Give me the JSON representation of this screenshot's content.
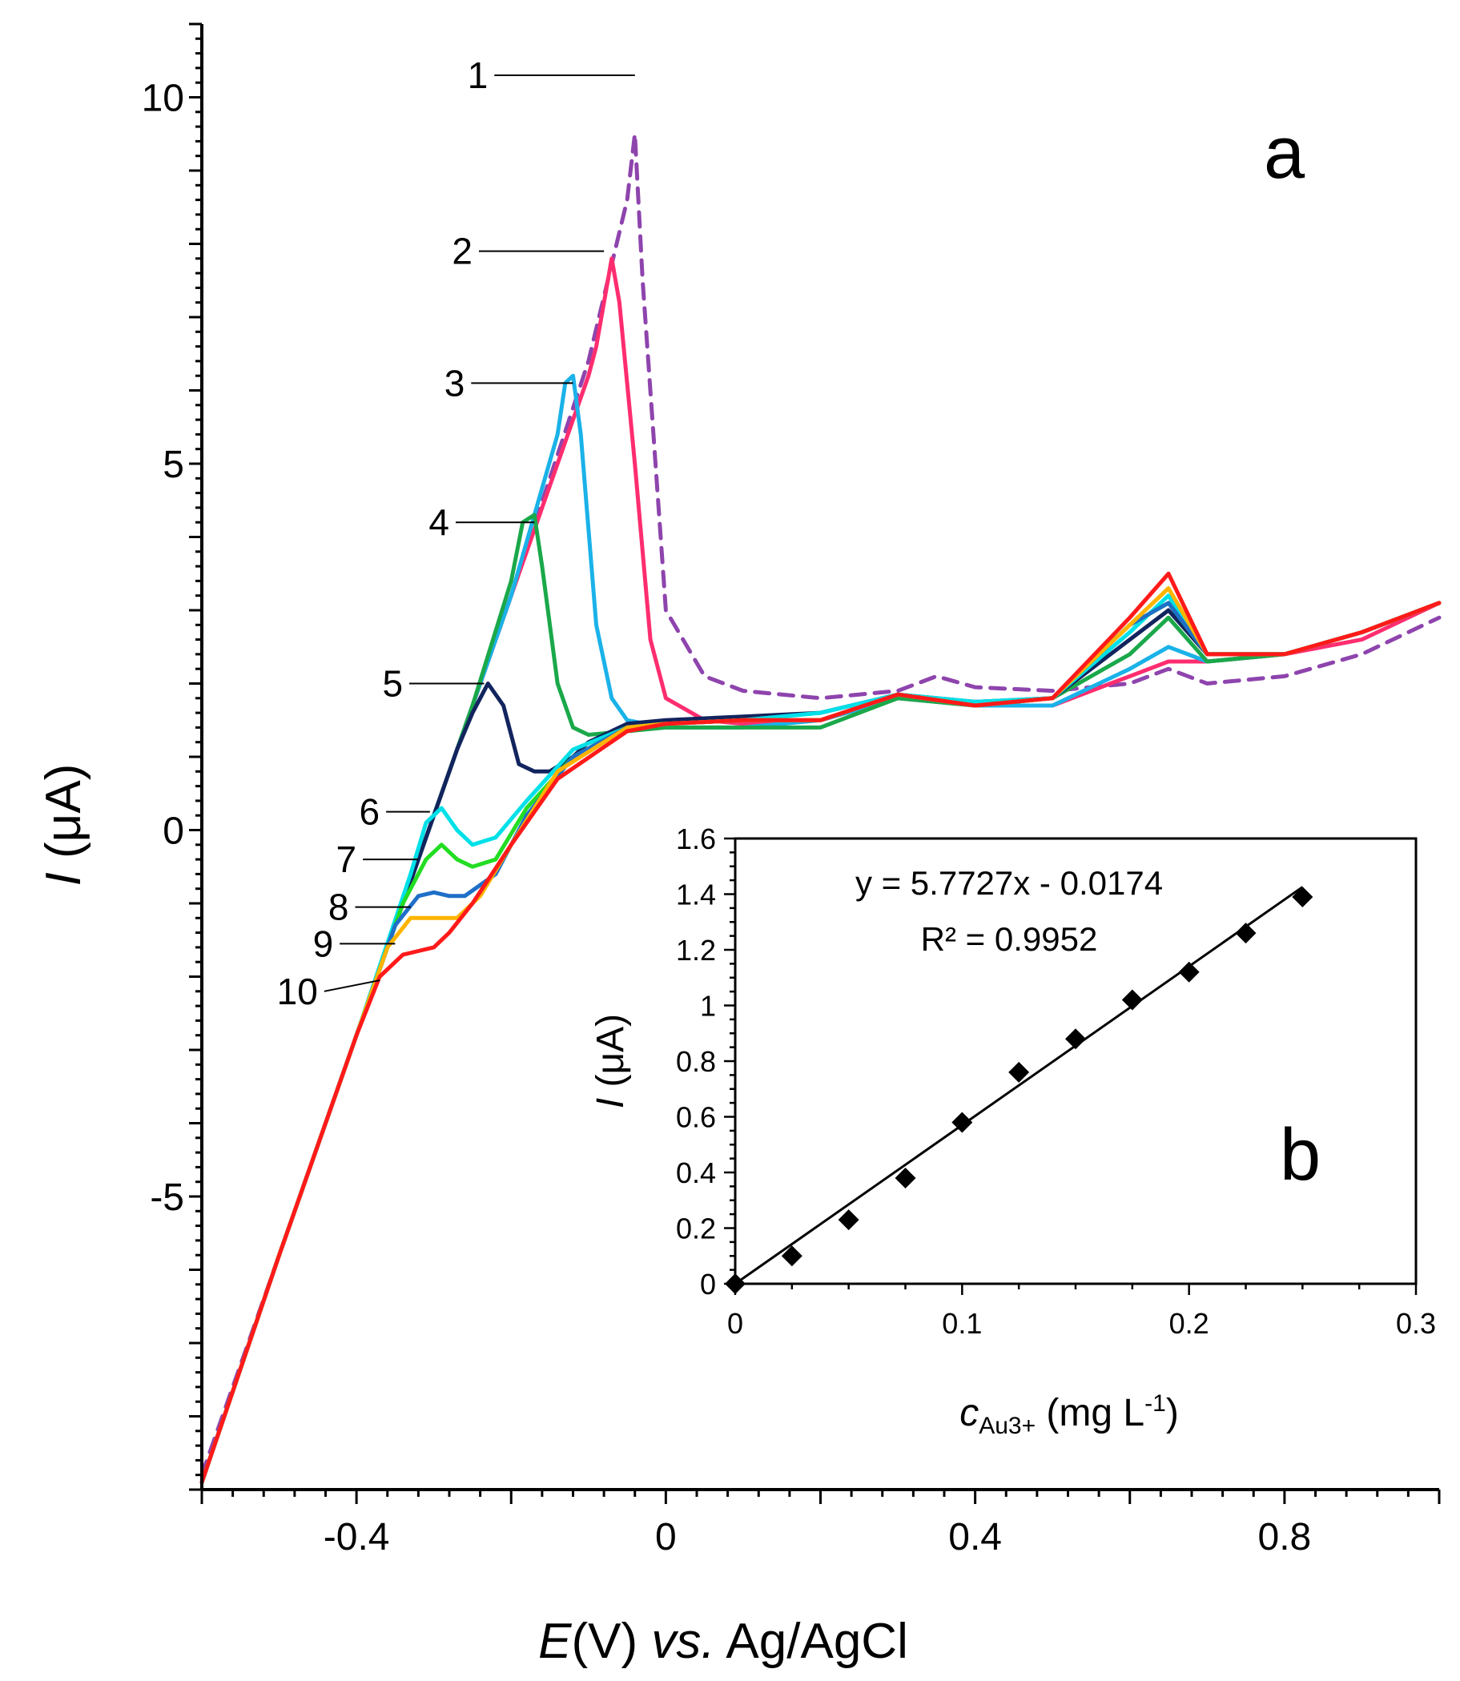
{
  "chart_data": [
    {
      "type": "line",
      "panel_label": "a",
      "xlabel": {
        "italic": "E",
        "rest1": "(V) ",
        "italic2": "vs.",
        "rest2": " Ag/AgCl"
      },
      "ylabel": {
        "italic": "I",
        "rest": " (μA)"
      },
      "xlim": [
        -0.6,
        1.0
      ],
      "ylim": [
        -9,
        11
      ],
      "x_ticks": [
        {
          "value": -0.4,
          "label": "-0.4"
        },
        {
          "value": 0,
          "label": "0"
        },
        {
          "value": 0.4,
          "label": "0.4"
        },
        {
          "value": 0.8,
          "label": "0.8"
        }
      ],
      "y_ticks": [
        {
          "value": 10,
          "label": "10"
        },
        {
          "value": 5,
          "label": "5"
        },
        {
          "value": 0,
          "label": "0"
        },
        {
          "value": -5,
          "label": "-5"
        }
      ],
      "series": [
        {
          "name": "1",
          "color": "#8e44ad",
          "dashed": true,
          "x": [
            -0.6,
            -0.5,
            -0.4,
            -0.3,
            -0.2,
            -0.1,
            -0.05,
            -0.04,
            -0.03,
            -0.01,
            0.0,
            0.05,
            0.1,
            0.2,
            0.3,
            0.35,
            0.4,
            0.5,
            0.6,
            0.65,
            0.7,
            0.8,
            0.9,
            1.0
          ],
          "y": [
            -8.8,
            -5.8,
            -2.8,
            0.2,
            3.2,
            6.4,
            8.6,
            9.5,
            7.5,
            4.5,
            3.0,
            2.1,
            1.9,
            1.8,
            1.9,
            2.1,
            1.95,
            1.9,
            2.0,
            2.2,
            2.0,
            2.1,
            2.4,
            2.9
          ]
        },
        {
          "name": "2",
          "color": "#ff2d6f",
          "dashed": false,
          "x": [
            -0.6,
            -0.5,
            -0.4,
            -0.3,
            -0.2,
            -0.1,
            -0.09,
            -0.07,
            -0.06,
            -0.04,
            -0.02,
            0.0,
            0.05,
            0.1,
            0.2,
            0.3,
            0.4,
            0.5,
            0.6,
            0.65,
            0.7,
            0.8,
            0.9,
            1.0
          ],
          "y": [
            -8.9,
            -5.8,
            -2.8,
            0.2,
            3.2,
            6.2,
            6.6,
            7.8,
            7.2,
            5.0,
            2.6,
            1.8,
            1.5,
            1.45,
            1.5,
            1.8,
            1.7,
            1.7,
            2.1,
            2.3,
            2.3,
            2.4,
            2.6,
            3.1
          ]
        },
        {
          "name": "3",
          "color": "#1ab2e8",
          "dashed": false,
          "x": [
            -0.6,
            -0.5,
            -0.4,
            -0.3,
            -0.2,
            -0.14,
            -0.13,
            -0.12,
            -0.11,
            -0.09,
            -0.07,
            -0.05,
            0.0,
            0.1,
            0.2,
            0.3,
            0.4,
            0.5,
            0.6,
            0.65,
            0.7,
            0.8,
            0.9,
            1.0
          ],
          "y": [
            -8.9,
            -5.8,
            -2.8,
            0.2,
            3.2,
            5.4,
            6.1,
            6.2,
            5.4,
            2.8,
            1.8,
            1.5,
            1.4,
            1.4,
            1.5,
            1.8,
            1.7,
            1.7,
            2.2,
            2.5,
            2.3,
            2.4,
            2.7,
            3.1
          ]
        },
        {
          "name": "4",
          "color": "#1aa84a",
          "dashed": false,
          "x": [
            -0.6,
            -0.5,
            -0.4,
            -0.3,
            -0.25,
            -0.2,
            -0.185,
            -0.17,
            -0.16,
            -0.14,
            -0.12,
            -0.1,
            -0.05,
            0.0,
            0.1,
            0.2,
            0.3,
            0.4,
            0.5,
            0.6,
            0.65,
            0.7,
            0.8,
            0.9,
            1.0
          ],
          "y": [
            -8.9,
            -5.8,
            -2.8,
            0.2,
            1.7,
            3.4,
            4.2,
            4.3,
            3.6,
            2.0,
            1.4,
            1.3,
            1.35,
            1.4,
            1.4,
            1.4,
            1.8,
            1.7,
            1.8,
            2.4,
            2.9,
            2.3,
            2.4,
            2.7,
            3.1
          ]
        },
        {
          "name": "5",
          "color": "#12245e",
          "dashed": false,
          "x": [
            -0.6,
            -0.5,
            -0.4,
            -0.3,
            -0.27,
            -0.25,
            -0.23,
            -0.21,
            -0.19,
            -0.17,
            -0.15,
            -0.12,
            -0.1,
            -0.05,
            0.0,
            0.1,
            0.2,
            0.3,
            0.4,
            0.5,
            0.6,
            0.65,
            0.7,
            0.8,
            0.9,
            1.0
          ],
          "y": [
            -8.9,
            -5.8,
            -2.8,
            0.2,
            1.1,
            1.6,
            2.0,
            1.7,
            0.9,
            0.8,
            0.8,
            1.0,
            1.2,
            1.45,
            1.5,
            1.55,
            1.6,
            1.85,
            1.75,
            1.8,
            2.6,
            3.0,
            2.4,
            2.4,
            2.7,
            3.1
          ]
        },
        {
          "name": "6",
          "color": "#00e0e8",
          "dashed": false,
          "x": [
            -0.6,
            -0.5,
            -0.4,
            -0.33,
            -0.31,
            -0.29,
            -0.27,
            -0.25,
            -0.22,
            -0.18,
            -0.12,
            -0.05,
            0.0,
            0.1,
            0.2,
            0.3,
            0.4,
            0.5,
            0.6,
            0.65,
            0.7,
            0.8,
            0.9,
            1.0
          ],
          "y": [
            -8.9,
            -5.8,
            -2.8,
            -0.6,
            0.1,
            0.3,
            0.0,
            -0.2,
            -0.1,
            0.4,
            1.1,
            1.4,
            1.45,
            1.5,
            1.6,
            1.85,
            1.75,
            1.8,
            2.7,
            3.2,
            2.4,
            2.4,
            2.7,
            3.1
          ]
        },
        {
          "name": "7",
          "color": "#22dd22",
          "dashed": false,
          "x": [
            -0.6,
            -0.5,
            -0.4,
            -0.34,
            -0.31,
            -0.29,
            -0.27,
            -0.25,
            -0.22,
            -0.18,
            -0.12,
            -0.05,
            0.0,
            0.1,
            0.2,
            0.3,
            0.4,
            0.5,
            0.6,
            0.65,
            0.7,
            0.8,
            0.9,
            1.0
          ],
          "y": [
            -8.9,
            -5.8,
            -2.8,
            -1.0,
            -0.4,
            -0.2,
            -0.4,
            -0.5,
            -0.4,
            0.3,
            1.0,
            1.4,
            1.45,
            1.5,
            1.5,
            1.85,
            1.7,
            1.8,
            2.8,
            3.1,
            2.4,
            2.4,
            2.7,
            3.1
          ]
        },
        {
          "name": "8",
          "color": "#1f6fc8",
          "dashed": false,
          "x": [
            -0.6,
            -0.5,
            -0.4,
            -0.35,
            -0.32,
            -0.3,
            -0.28,
            -0.26,
            -0.22,
            -0.18,
            -0.12,
            -0.05,
            0.0,
            0.1,
            0.2,
            0.3,
            0.4,
            0.5,
            0.6,
            0.65,
            0.7,
            0.8,
            0.9,
            1.0
          ],
          "y": [
            -8.9,
            -5.8,
            -2.8,
            -1.3,
            -0.9,
            -0.85,
            -0.9,
            -0.9,
            -0.6,
            0.2,
            1.0,
            1.4,
            1.45,
            1.5,
            1.5,
            1.85,
            1.7,
            1.8,
            2.8,
            3.1,
            2.4,
            2.4,
            2.7,
            3.1
          ]
        },
        {
          "name": "9",
          "color": "#ffb400",
          "dashed": false,
          "x": [
            -0.6,
            -0.5,
            -0.4,
            -0.36,
            -0.33,
            -0.31,
            -0.29,
            -0.27,
            -0.24,
            -0.2,
            -0.14,
            -0.05,
            0.0,
            0.1,
            0.2,
            0.3,
            0.4,
            0.5,
            0.6,
            0.65,
            0.7,
            0.8,
            0.9,
            1.0
          ],
          "y": [
            -8.9,
            -5.8,
            -2.8,
            -1.6,
            -1.2,
            -1.2,
            -1.2,
            -1.2,
            -0.9,
            -0.2,
            0.8,
            1.4,
            1.45,
            1.5,
            1.5,
            1.85,
            1.7,
            1.8,
            2.8,
            3.3,
            2.4,
            2.4,
            2.7,
            3.1
          ]
        },
        {
          "name": "10",
          "color": "#ff1a1a",
          "dashed": false,
          "x": [
            -0.6,
            -0.5,
            -0.4,
            -0.37,
            -0.34,
            -0.32,
            -0.3,
            -0.28,
            -0.25,
            -0.2,
            -0.14,
            -0.05,
            0.0,
            0.1,
            0.2,
            0.3,
            0.4,
            0.5,
            0.6,
            0.65,
            0.7,
            0.8,
            0.9,
            1.0
          ],
          "y": [
            -8.9,
            -5.8,
            -2.8,
            -2.0,
            -1.7,
            -1.65,
            -1.6,
            -1.4,
            -1.0,
            -0.2,
            0.7,
            1.35,
            1.45,
            1.5,
            1.5,
            1.85,
            1.7,
            1.8,
            2.9,
            3.5,
            2.4,
            2.4,
            2.7,
            3.1
          ]
        }
      ],
      "curve_labels": [
        {
          "text": "1",
          "series": 0,
          "anchor_x": -0.04,
          "anchor_y": 10.3,
          "text_x": -0.23,
          "text_y": 10.3
        },
        {
          "text": "2",
          "series": 1,
          "anchor_x": -0.08,
          "anchor_y": 7.9,
          "text_x": -0.25,
          "text_y": 7.9
        },
        {
          "text": "3",
          "series": 2,
          "anchor_x": -0.12,
          "anchor_y": 6.1,
          "text_x": -0.26,
          "text_y": 6.1
        },
        {
          "text": "4",
          "series": 3,
          "anchor_x": -0.17,
          "anchor_y": 4.2,
          "text_x": -0.28,
          "text_y": 4.2
        },
        {
          "text": "5",
          "series": 4,
          "anchor_x": -0.235,
          "anchor_y": 2.0,
          "text_x": -0.34,
          "text_y": 2.0
        },
        {
          "text": "6",
          "series": 5,
          "anchor_x": -0.305,
          "anchor_y": 0.25,
          "text_x": -0.37,
          "text_y": 0.25
        },
        {
          "text": "7",
          "series": 6,
          "anchor_x": -0.32,
          "anchor_y": -0.4,
          "text_x": -0.4,
          "text_y": -0.4
        },
        {
          "text": "8",
          "series": 7,
          "anchor_x": -0.33,
          "anchor_y": -1.05,
          "text_x": -0.41,
          "text_y": -1.05
        },
        {
          "text": "9",
          "series": 8,
          "anchor_x": -0.35,
          "anchor_y": -1.55,
          "text_x": -0.43,
          "text_y": -1.55
        },
        {
          "text": "10",
          "series": 9,
          "anchor_x": -0.37,
          "anchor_y": -2.05,
          "text_x": -0.45,
          "text_y": -2.2
        }
      ]
    },
    {
      "type": "scatter",
      "panel_label": "b",
      "xlabel": {
        "italic": "c",
        "sub": "Au3+",
        "rest": " (mg L",
        "sup": "-1",
        "end": ")"
      },
      "ylabel": {
        "italic": "I",
        "rest": " (μA)"
      },
      "xlim": [
        0,
        0.3
      ],
      "ylim": [
        0,
        1.6
      ],
      "x_ticks": [
        {
          "value": 0,
          "label": "0"
        },
        {
          "value": 0.1,
          "label": "0.1"
        },
        {
          "value": 0.2,
          "label": "0.2"
        },
        {
          "value": 0.3,
          "label": "0.3"
        }
      ],
      "y_ticks": [
        {
          "value": 0,
          "label": "0"
        },
        {
          "value": 0.2,
          "label": "0.2"
        },
        {
          "value": 0.4,
          "label": "0.4"
        },
        {
          "value": 0.6,
          "label": "0.6"
        },
        {
          "value": 0.8,
          "label": "0.8"
        },
        {
          "value": 1.0,
          "label": "1"
        },
        {
          "value": 1.2,
          "label": "1.2"
        },
        {
          "value": 1.4,
          "label": "1.4"
        },
        {
          "value": 1.6,
          "label": "1.6"
        }
      ],
      "x": [
        0,
        0.025,
        0.05,
        0.075,
        0.1,
        0.125,
        0.15,
        0.175,
        0.2,
        0.225,
        0.25
      ],
      "y": [
        0,
        0.1,
        0.23,
        0.38,
        0.58,
        0.76,
        0.88,
        1.02,
        1.12,
        1.26,
        1.39
      ],
      "fit": {
        "slope": 5.7727,
        "intercept": -0.0174,
        "x_range": [
          0,
          0.25
        ]
      },
      "equation": "y = 5.7727x - 0.0174",
      "r2_label": "R² = 0.9952"
    }
  ]
}
